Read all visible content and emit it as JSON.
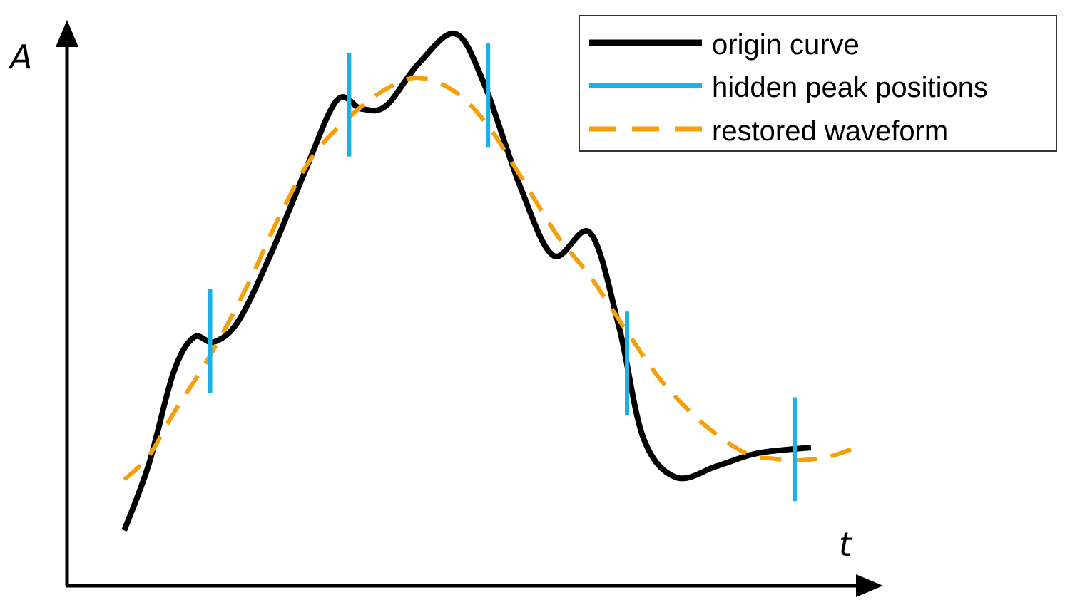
{
  "chart_data": {
    "type": "line",
    "ylabel": "A",
    "xlabel": "t",
    "xlim": [
      0,
      1
    ],
    "ylim": [
      0,
      1
    ],
    "grid": false,
    "legend_position": "top-right",
    "series": [
      {
        "name": "origin curve",
        "style": "solid",
        "color": "#000000",
        "points": [
          [
            0.07,
            0.098
          ],
          [
            0.1,
            0.215
          ],
          [
            0.13,
            0.377
          ],
          [
            0.155,
            0.44
          ],
          [
            0.18,
            0.432
          ],
          [
            0.21,
            0.47
          ],
          [
            0.25,
            0.59
          ],
          [
            0.29,
            0.73
          ],
          [
            0.33,
            0.86
          ],
          [
            0.36,
            0.845
          ],
          [
            0.39,
            0.85
          ],
          [
            0.43,
            0.925
          ],
          [
            0.475,
            0.978
          ],
          [
            0.51,
            0.89
          ],
          [
            0.555,
            0.705
          ],
          [
            0.595,
            0.585
          ],
          [
            0.64,
            0.625
          ],
          [
            0.675,
            0.46
          ],
          [
            0.705,
            0.262
          ],
          [
            0.745,
            0.192
          ],
          [
            0.795,
            0.212
          ],
          [
            0.845,
            0.235
          ],
          [
            0.91,
            0.245
          ]
        ]
      },
      {
        "name": "hidden peak positions",
        "style": "vertical-segments",
        "color": "#1ab0e8",
        "x": [
          0.175,
          0.345,
          0.515,
          0.685,
          0.89
        ]
      },
      {
        "name": "restored waveform",
        "style": "dashed",
        "color": "#f5a00a",
        "points": [
          [
            0.07,
            0.188
          ],
          [
            0.1,
            0.23
          ],
          [
            0.13,
            0.305
          ],
          [
            0.175,
            0.408
          ],
          [
            0.22,
            0.53
          ],
          [
            0.26,
            0.655
          ],
          [
            0.3,
            0.76
          ],
          [
            0.345,
            0.83
          ],
          [
            0.39,
            0.88
          ],
          [
            0.43,
            0.9
          ],
          [
            0.475,
            0.875
          ],
          [
            0.515,
            0.815
          ],
          [
            0.555,
            0.725
          ],
          [
            0.6,
            0.62
          ],
          [
            0.64,
            0.548
          ],
          [
            0.685,
            0.45
          ],
          [
            0.73,
            0.358
          ],
          [
            0.78,
            0.285
          ],
          [
            0.83,
            0.235
          ],
          [
            0.865,
            0.225
          ],
          [
            0.89,
            0.222
          ],
          [
            0.93,
            0.228
          ],
          [
            0.965,
            0.245
          ]
        ]
      }
    ]
  }
}
